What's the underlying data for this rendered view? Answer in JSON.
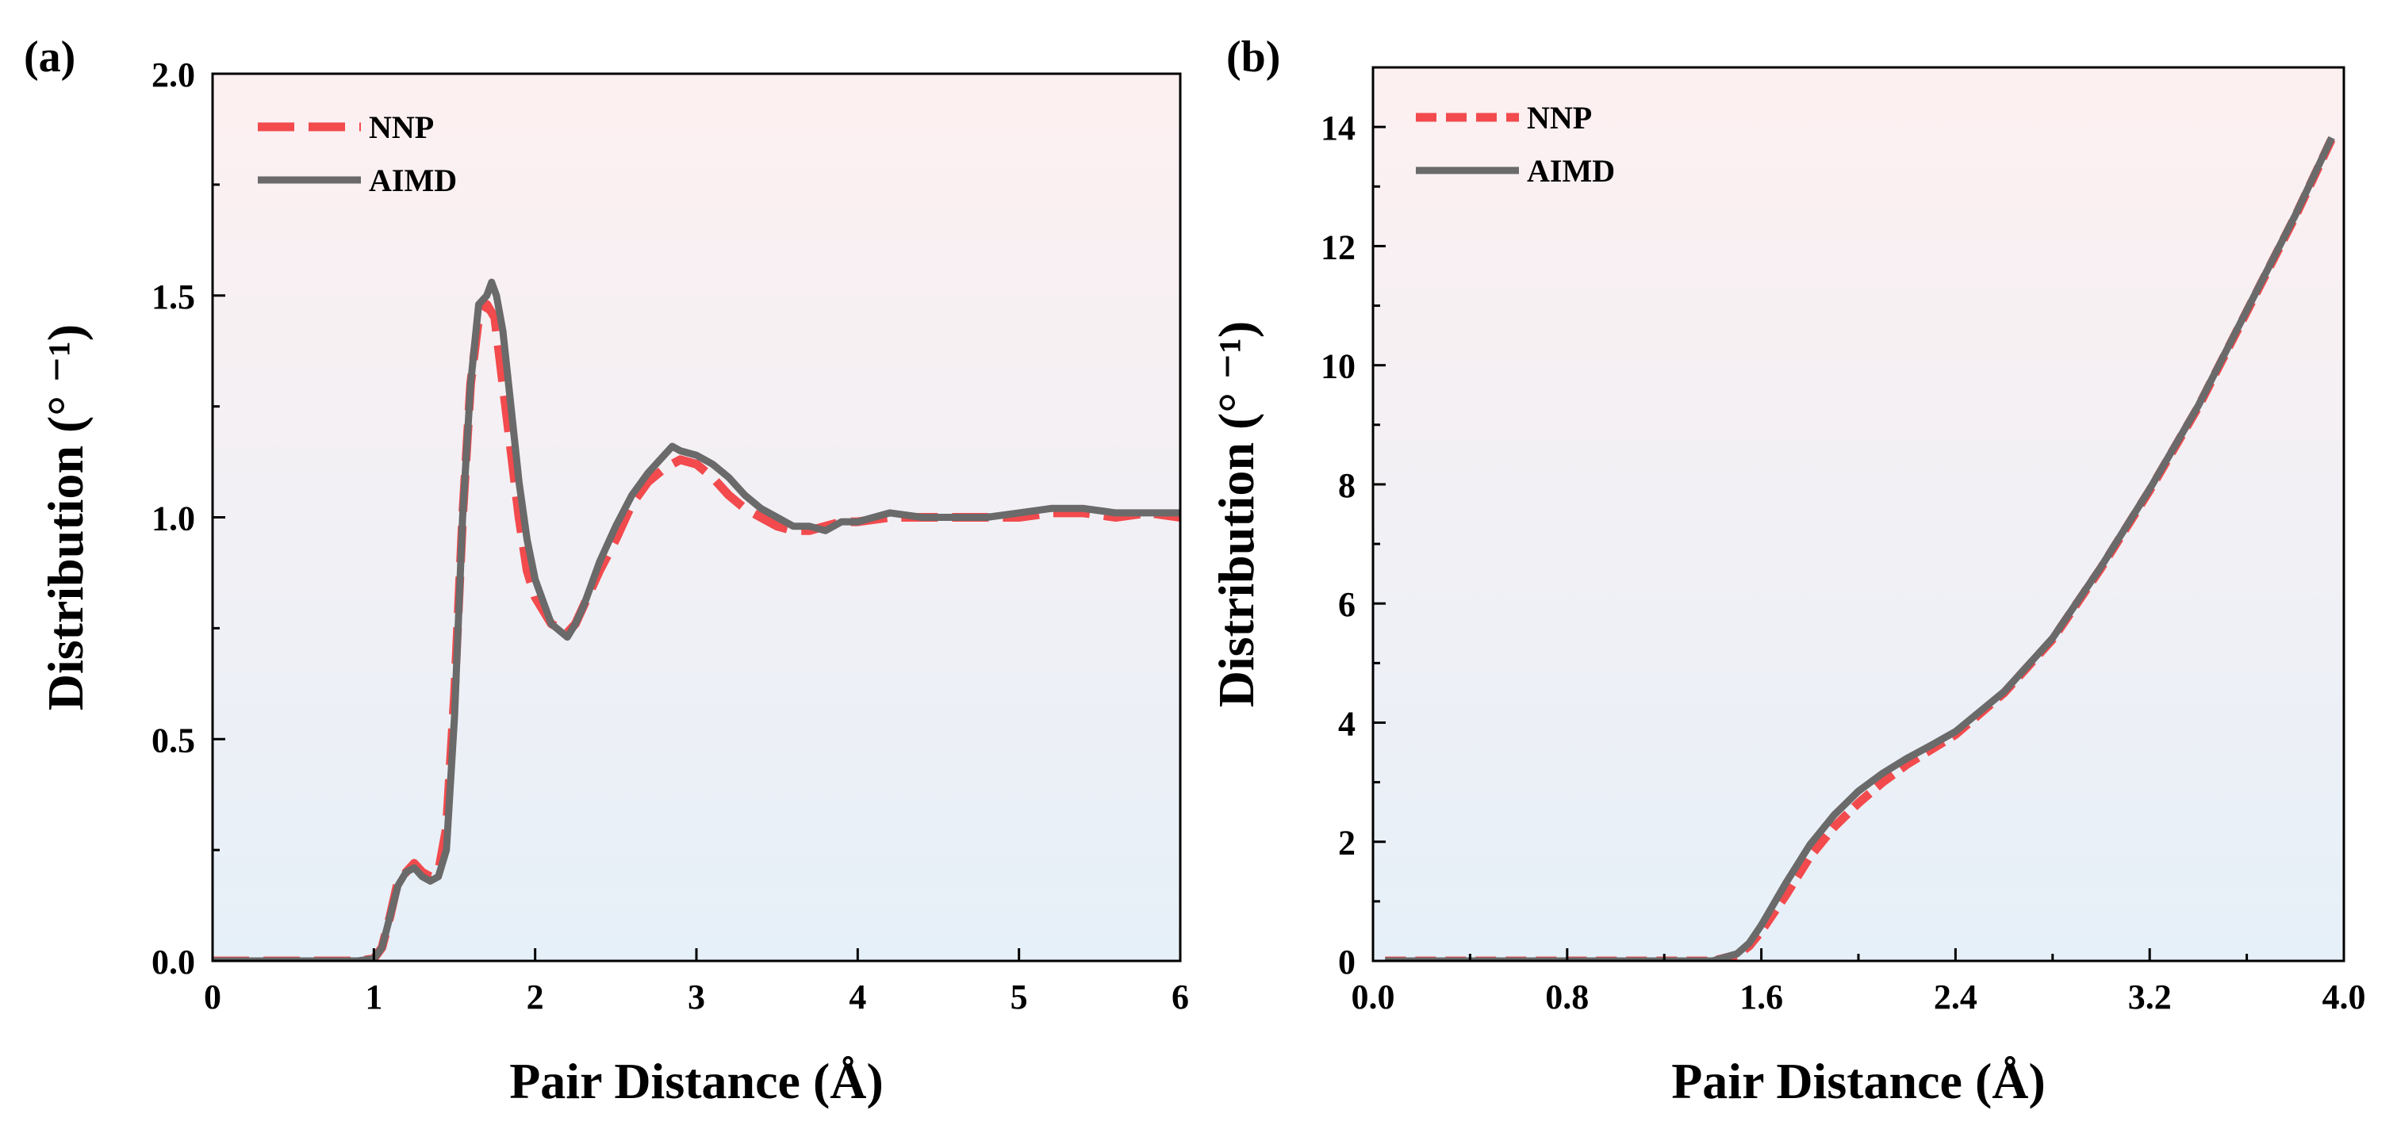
{
  "chart_data": [
    {
      "type": "line",
      "panel_label": "(a)",
      "xlabel": "Pair Distance (Å)",
      "ylabel": "Distribution (° ⁻¹)",
      "xlim": [
        0,
        6
      ],
      "ylim": [
        0,
        2.0
      ],
      "xticks": [
        0,
        1,
        2,
        3,
        4,
        5,
        6
      ],
      "xtick_labels": [
        "0",
        "1",
        "2",
        "3",
        "4",
        "5",
        "6"
      ],
      "yticks": [
        0,
        0.5,
        1.0,
        1.5,
        2.0
      ],
      "ytick_labels": [
        "0.0",
        "0.5",
        "1.0",
        "1.5",
        "2.0"
      ],
      "legend_position": "top-left",
      "grid": false,
      "background_gradient": [
        "#fdf0f1",
        "#e6f0f8"
      ],
      "series": [
        {
          "name": "NNP",
          "color": "#f24a4d",
          "style": "dashed",
          "x": [
            0,
            0.5,
            0.9,
            1.0,
            1.05,
            1.1,
            1.15,
            1.2,
            1.25,
            1.3,
            1.35,
            1.4,
            1.45,
            1.5,
            1.55,
            1.6,
            1.65,
            1.7,
            1.75,
            1.8,
            1.85,
            1.9,
            1.95,
            2.0,
            2.1,
            2.2,
            2.25,
            2.3,
            2.4,
            2.5,
            2.6,
            2.7,
            2.8,
            2.9,
            3.0,
            3.1,
            3.2,
            3.3,
            3.4,
            3.5,
            3.6,
            3.7,
            3.8,
            3.9,
            4.0,
            4.2,
            4.4,
            4.6,
            4.8,
            5.0,
            5.2,
            5.4,
            5.6,
            5.8,
            6.0
          ],
          "y": [
            0,
            0,
            0,
            0.005,
            0.03,
            0.1,
            0.18,
            0.2,
            0.22,
            0.2,
            0.19,
            0.2,
            0.3,
            0.6,
            1.0,
            1.3,
            1.45,
            1.48,
            1.45,
            1.3,
            1.15,
            1.0,
            0.88,
            0.82,
            0.76,
            0.74,
            0.76,
            0.8,
            0.88,
            0.95,
            1.03,
            1.08,
            1.11,
            1.13,
            1.12,
            1.09,
            1.05,
            1.02,
            1.0,
            0.98,
            0.97,
            0.97,
            0.98,
            0.99,
            0.99,
            1.0,
            1.0,
            1.0,
            1.0,
            1.0,
            1.01,
            1.01,
            1.0,
            1.01,
            1.0
          ]
        },
        {
          "name": "AIMD",
          "color": "#6a6a6a",
          "style": "solid",
          "x": [
            0,
            0.5,
            0.9,
            1.0,
            1.05,
            1.1,
            1.15,
            1.2,
            1.25,
            1.3,
            1.35,
            1.4,
            1.45,
            1.5,
            1.55,
            1.6,
            1.65,
            1.7,
            1.73,
            1.76,
            1.8,
            1.85,
            1.9,
            1.95,
            2.0,
            2.1,
            2.2,
            2.25,
            2.3,
            2.4,
            2.5,
            2.6,
            2.7,
            2.8,
            2.85,
            2.9,
            3.0,
            3.1,
            3.2,
            3.3,
            3.4,
            3.5,
            3.6,
            3.7,
            3.8,
            3.9,
            4.0,
            4.1,
            4.2,
            4.4,
            4.6,
            4.8,
            5.0,
            5.2,
            5.3,
            5.4,
            5.6,
            5.8,
            6.0
          ],
          "y": [
            0,
            0,
            0,
            0.005,
            0.03,
            0.1,
            0.17,
            0.2,
            0.21,
            0.19,
            0.18,
            0.19,
            0.25,
            0.55,
            1.0,
            1.3,
            1.48,
            1.5,
            1.53,
            1.5,
            1.42,
            1.25,
            1.08,
            0.95,
            0.86,
            0.76,
            0.73,
            0.76,
            0.8,
            0.9,
            0.98,
            1.05,
            1.1,
            1.14,
            1.16,
            1.15,
            1.14,
            1.12,
            1.09,
            1.05,
            1.02,
            1.0,
            0.98,
            0.98,
            0.97,
            0.99,
            0.99,
            1.0,
            1.01,
            1.0,
            1.0,
            1.0,
            1.01,
            1.02,
            1.02,
            1.02,
            1.01,
            1.01,
            1.01
          ]
        }
      ]
    },
    {
      "type": "line",
      "panel_label": "(b)",
      "xlabel": "Pair Distance (Å)",
      "ylabel": "Distribution (° ⁻¹)",
      "xlim": [
        0,
        4.0
      ],
      "ylim": [
        0,
        15
      ],
      "xticks": [
        0,
        0.8,
        1.6,
        2.4,
        3.2,
        4.0
      ],
      "xtick_labels": [
        "0.0",
        "0.8",
        "1.6",
        "2.4",
        "3.2",
        "4.0"
      ],
      "yticks": [
        0,
        2,
        4,
        6,
        8,
        10,
        12,
        14
      ],
      "ytick_labels": [
        "0",
        "2",
        "4",
        "6",
        "8",
        "10",
        "12",
        "14"
      ],
      "legend_position": "top-left",
      "grid": false,
      "background_gradient": [
        "#fdf0f1",
        "#e6f0f8"
      ],
      "series": [
        {
          "name": "NNP",
          "color": "#f24a4d",
          "style": "dashed",
          "x": [
            0.05,
            0.4,
            0.8,
            1.2,
            1.4,
            1.5,
            1.55,
            1.6,
            1.7,
            1.8,
            1.9,
            2.0,
            2.1,
            2.2,
            2.3,
            2.4,
            2.6,
            2.8,
            3.0,
            3.2,
            3.4,
            3.6,
            3.8,
            3.95
          ],
          "y": [
            0,
            0,
            0,
            0,
            0,
            0.1,
            0.25,
            0.5,
            1.1,
            1.75,
            2.25,
            2.65,
            3.0,
            3.3,
            3.55,
            3.8,
            4.5,
            5.4,
            6.6,
            7.9,
            9.3,
            10.9,
            12.5,
            13.8
          ]
        },
        {
          "name": "AIMD",
          "color": "#6a6a6a",
          "style": "solid",
          "x": [
            0.05,
            0.4,
            0.8,
            1.2,
            1.4,
            1.5,
            1.55,
            1.6,
            1.7,
            1.8,
            1.9,
            2.0,
            2.1,
            2.2,
            2.3,
            2.4,
            2.6,
            2.8,
            3.0,
            3.2,
            3.4,
            3.6,
            3.8,
            3.95
          ],
          "y": [
            0,
            0,
            0,
            0,
            0,
            0.12,
            0.3,
            0.6,
            1.3,
            1.95,
            2.45,
            2.85,
            3.15,
            3.4,
            3.62,
            3.85,
            4.52,
            5.42,
            6.62,
            7.92,
            9.32,
            10.92,
            12.52,
            13.82
          ]
        }
      ]
    }
  ]
}
